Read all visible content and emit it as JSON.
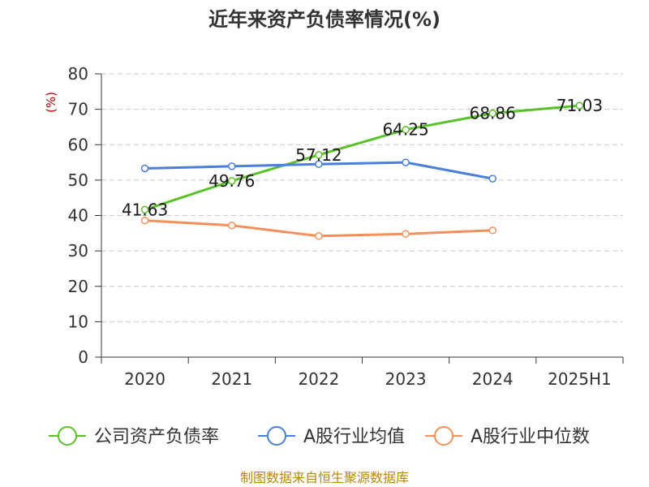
{
  "chart_data": {
    "type": "line",
    "title": "近年来资产负债率情况(%)",
    "ylabel": "(%)",
    "xlabel": "",
    "ylim": [
      0,
      80
    ],
    "yticks": [
      0,
      10,
      20,
      30,
      40,
      50,
      60,
      70,
      80
    ],
    "grid": true,
    "legend_position": "bottom",
    "categories": [
      "2020",
      "2021",
      "2022",
      "2023",
      "2024",
      "2025H1"
    ],
    "series": [
      {
        "name": "公司资产负债率",
        "color": "#5ac12a",
        "values": [
          41.63,
          49.76,
          57.12,
          64.25,
          68.86,
          71.03
        ],
        "labels": [
          "41.63",
          "49.76",
          "57.12",
          "64.25",
          "68.86",
          "71.03"
        ]
      },
      {
        "name": "A股行业均值",
        "color": "#4a7fdb",
        "values": [
          53.3,
          53.9,
          54.5,
          55.0,
          50.4,
          null
        ]
      },
      {
        "name": "A股行业中位数",
        "color": "#f5905a",
        "values": [
          38.6,
          37.2,
          34.2,
          34.8,
          35.8,
          null
        ]
      }
    ]
  },
  "footer": {
    "source": "制图数据来自恒生聚源数据库"
  }
}
